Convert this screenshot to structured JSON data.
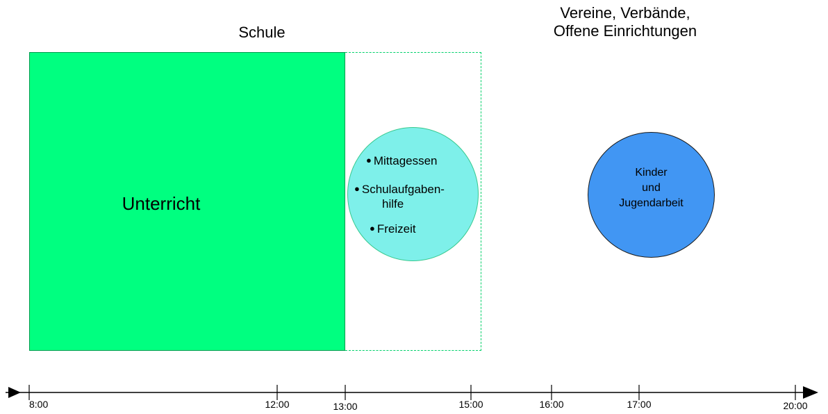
{
  "titles": {
    "schule": "Schule",
    "vereine_line1": "Vereine, Verbände,",
    "vereine_line2": "Offene Einrichtungen"
  },
  "blocks": {
    "unterricht": "Unterricht",
    "ganztag_bullets": [
      "Mittagessen",
      "Schulaufgaben-",
      "Freizeit"
    ],
    "ganztag_bullet_cont": "hilfe",
    "jugend_lines": [
      "Kinder",
      "und",
      "Jugendarbeit"
    ]
  },
  "timeline": {
    "ticks": [
      {
        "label": "8:00",
        "hour": 8
      },
      {
        "label": "12:00",
        "hour": 12
      },
      {
        "label": "13:00",
        "hour": 13
      },
      {
        "label": "15:00",
        "hour": 15
      },
      {
        "label": "16:00",
        "hour": 16
      },
      {
        "label": "17:00",
        "hour": 17
      },
      {
        "label": "20:00",
        "hour": 20
      }
    ]
  },
  "colors": {
    "unterricht": "#00ff80",
    "ganztag": "#7ef0ea",
    "jugend": "#4196f3",
    "frame": "#00d16a"
  }
}
